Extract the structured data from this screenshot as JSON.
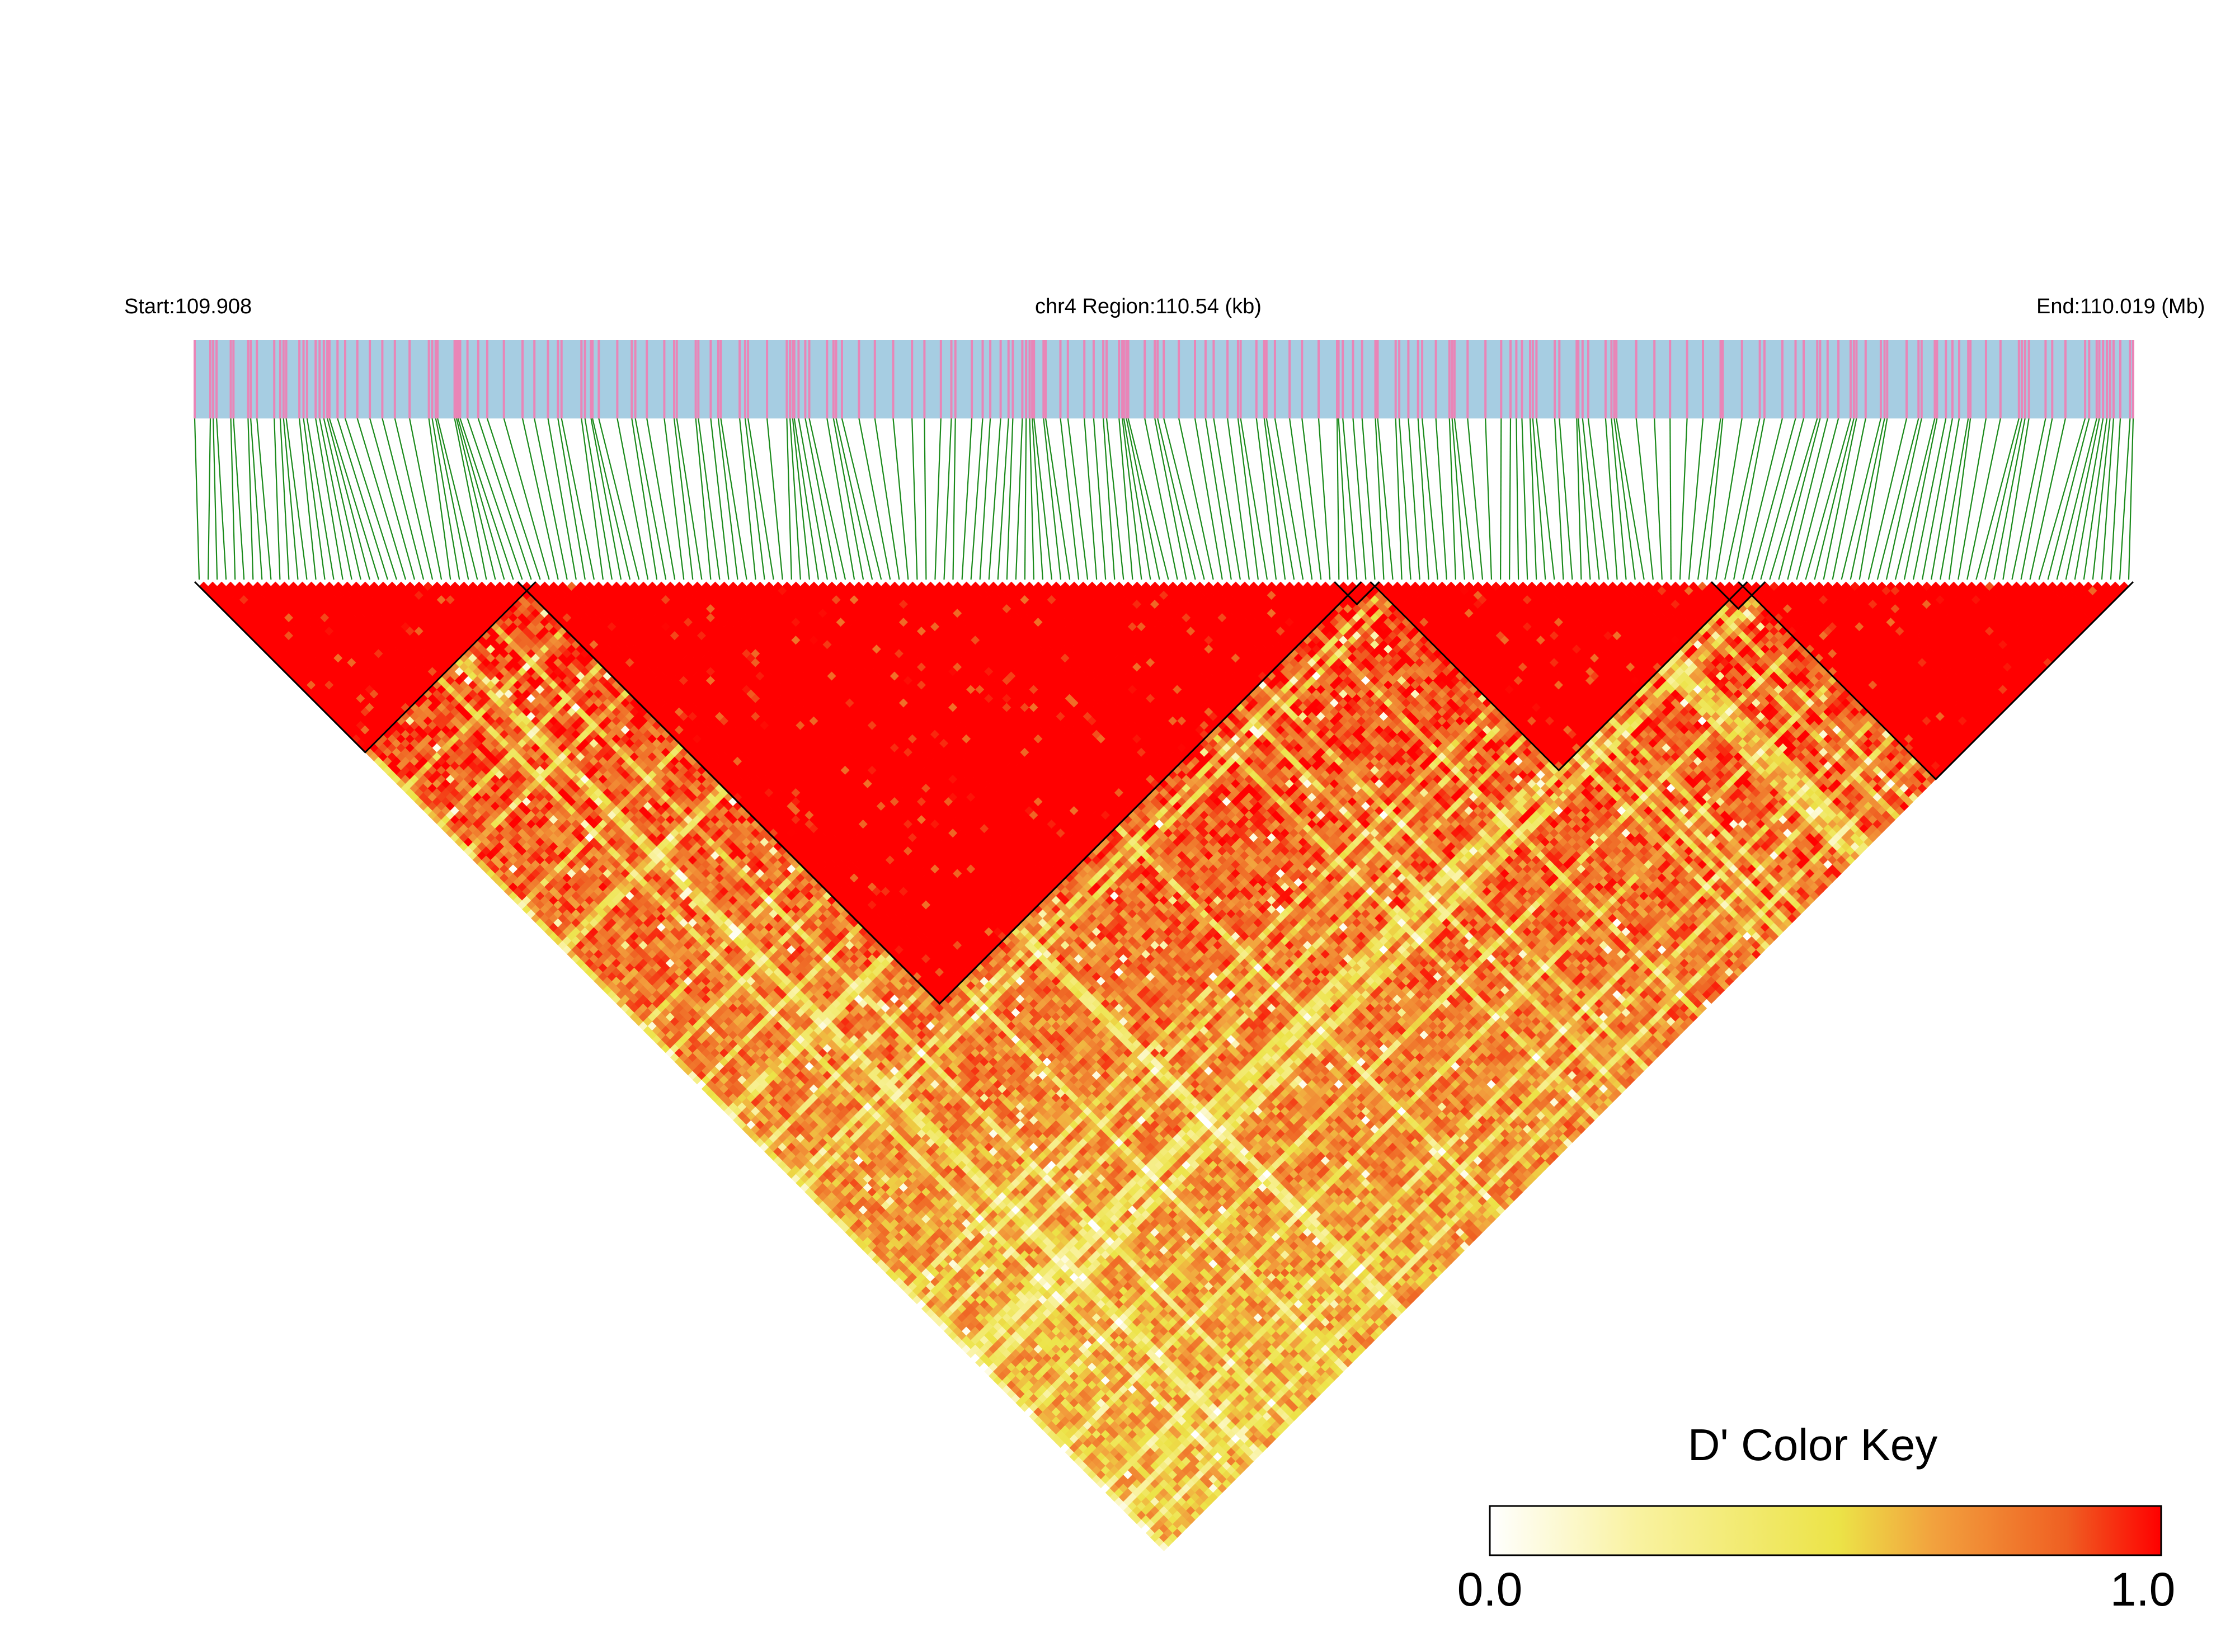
{
  "header": {
    "start_label": "Start:109.908",
    "region_label": "chr4 Region:110.54 (kb)",
    "end_label": "End:110.019 (Mb)"
  },
  "chart_data": {
    "type": "heatmap",
    "title": "",
    "chromosome": "chr4",
    "region_kb": 110.54,
    "start_mb": 109.908,
    "end_mb": 110.019,
    "n_snps": 216,
    "measure": "D'",
    "value_range": [
      0.0,
      1.0
    ],
    "colors": {
      "track_background": "#a6cde2",
      "track_marks": "#e985b7",
      "connector_lines": "#1a8a1a",
      "high": "#ff0000",
      "mid": "#ee6a2a",
      "low": "#ffffff"
    },
    "haplotype_blocks": [
      {
        "from_snp": 1,
        "to_snp": 38
      },
      {
        "from_snp": 37,
        "to_snp": 130
      },
      {
        "from_snp": 128,
        "to_snp": 132
      },
      {
        "from_snp": 132,
        "to_snp": 173
      },
      {
        "from_snp": 170,
        "to_snp": 175
      },
      {
        "from_snp": 173,
        "to_snp": 216
      }
    ],
    "color_key": {
      "title": "D' Color Key",
      "min_label": "0.0",
      "max_label": "1.0",
      "stops": [
        "#ffffff",
        "#f9f2a0",
        "#ece347",
        "#f2a23e",
        "#ef5f22",
        "#ff0000"
      ]
    }
  }
}
